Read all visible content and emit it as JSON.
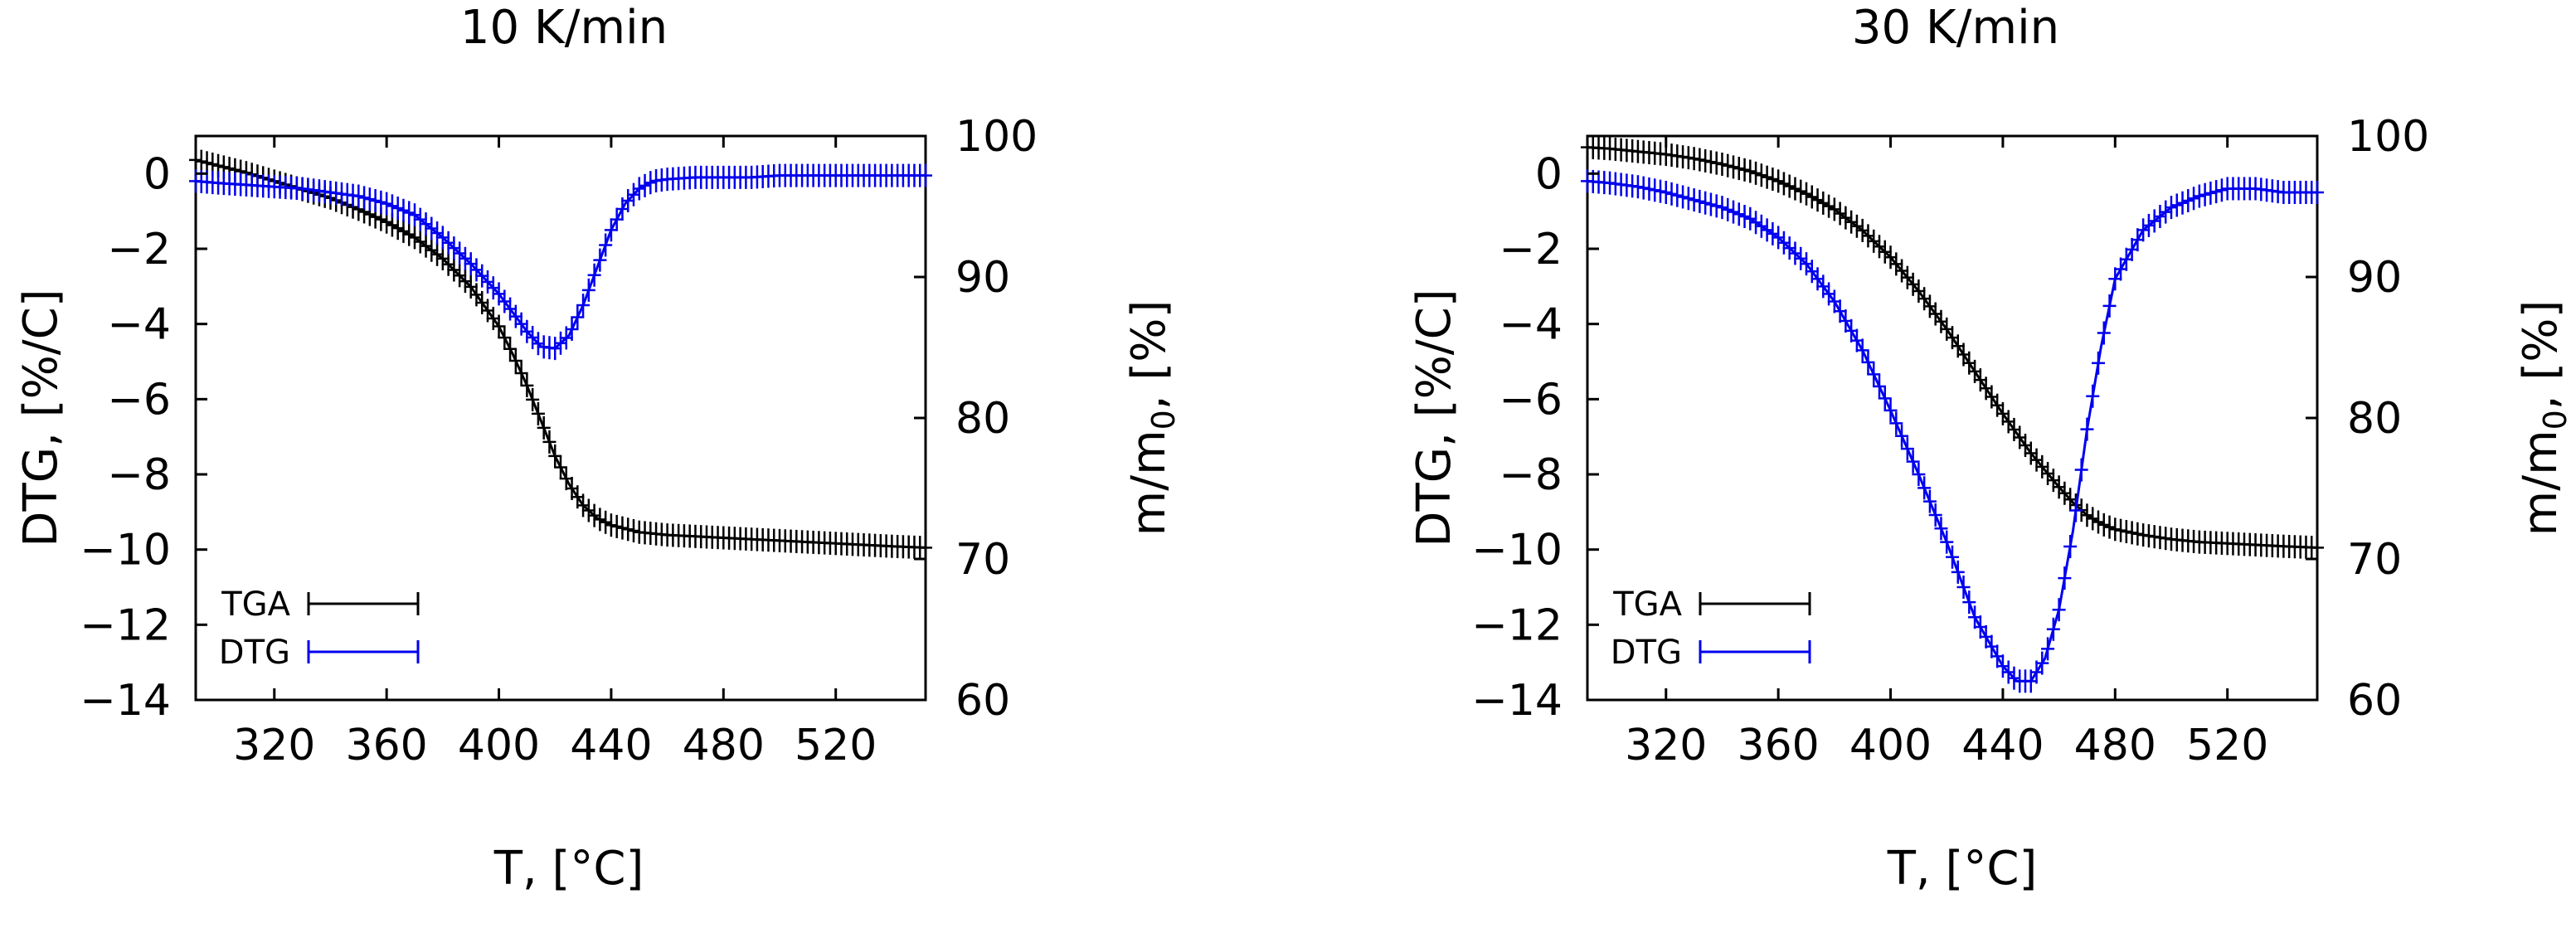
{
  "chart_data": [
    {
      "type": "line",
      "title": "10 K/min",
      "xlabel": "T, [°C]",
      "ylabel_left": "DTG, [%/C]",
      "ylabel_right": "m/m0, [%]",
      "xlim": [
        292,
        552
      ],
      "ylim_left": [
        -14,
        1
      ],
      "ylim_right": [
        60,
        100
      ],
      "xticks": [
        320,
        360,
        400,
        440,
        480,
        520
      ],
      "yticks_left": [
        0,
        -2,
        -4,
        -6,
        -8,
        -10,
        -12,
        -14
      ],
      "yticks_right": [
        100,
        90,
        80,
        70,
        60
      ],
      "legend_position": "bottom-left",
      "series": [
        {
          "name": "TGA",
          "axis": "right",
          "color": "#000000",
          "x": [
            292,
            300,
            310,
            320,
            330,
            340,
            350,
            360,
            370,
            380,
            390,
            400,
            405,
            410,
            415,
            420,
            425,
            430,
            435,
            440,
            450,
            460,
            470,
            480,
            490,
            500,
            510,
            520,
            530,
            540,
            552
          ],
          "y": [
            98.3,
            97.9,
            97.4,
            96.8,
            96.2,
            95.6,
            94.8,
            93.9,
            92.8,
            91.3,
            89.3,
            86.5,
            84.5,
            82.3,
            79.8,
            77.3,
            75.3,
            73.8,
            72.9,
            72.4,
            71.9,
            71.7,
            71.6,
            71.5,
            71.4,
            71.3,
            71.2,
            71.1,
            71.0,
            70.9,
            70.8
          ]
        },
        {
          "name": "DTG",
          "axis": "left",
          "color": "#0000ee",
          "x": [
            292,
            300,
            310,
            320,
            330,
            340,
            350,
            360,
            370,
            380,
            390,
            400,
            405,
            410,
            415,
            420,
            425,
            430,
            435,
            440,
            445,
            450,
            455,
            460,
            470,
            480,
            490,
            500,
            520,
            552
          ],
          "y": [
            -0.2,
            -0.25,
            -0.3,
            -0.35,
            -0.4,
            -0.5,
            -0.6,
            -0.8,
            -1.1,
            -1.7,
            -2.4,
            -3.2,
            -3.7,
            -4.2,
            -4.6,
            -4.65,
            -4.3,
            -3.5,
            -2.5,
            -1.5,
            -0.8,
            -0.4,
            -0.2,
            -0.15,
            -0.1,
            -0.1,
            -0.1,
            -0.05,
            -0.05,
            -0.05
          ]
        }
      ]
    },
    {
      "type": "line",
      "title": "30 K/min",
      "xlabel": "T, [°C]",
      "ylabel_left": "DTG, [%/C]",
      "ylabel_right": "m/m0, [%]",
      "xlim": [
        292,
        552
      ],
      "ylim_left": [
        -14,
        1
      ],
      "ylim_right": [
        60,
        100
      ],
      "xticks": [
        320,
        360,
        400,
        440,
        480,
        520
      ],
      "yticks_left": [
        0,
        -2,
        -4,
        -6,
        -8,
        -10,
        -12,
        -14
      ],
      "yticks_right": [
        100,
        90,
        80,
        70,
        60
      ],
      "legend_position": "bottom-left",
      "series": [
        {
          "name": "TGA",
          "axis": "right",
          "color": "#000000",
          "x": [
            292,
            300,
            310,
            320,
            330,
            340,
            350,
            360,
            370,
            380,
            390,
            400,
            410,
            420,
            430,
            440,
            450,
            455,
            460,
            465,
            470,
            475,
            480,
            490,
            500,
            510,
            520,
            530,
            540,
            552
          ],
          "y": [
            99.2,
            99.1,
            98.9,
            98.7,
            98.4,
            98.0,
            97.5,
            96.8,
            95.9,
            94.8,
            93.3,
            91.4,
            89.0,
            86.3,
            83.3,
            80.3,
            77.5,
            76.3,
            75.1,
            74.0,
            73.1,
            72.5,
            72.1,
            71.7,
            71.4,
            71.2,
            71.1,
            71.0,
            70.9,
            70.8
          ]
        },
        {
          "name": "DTG",
          "axis": "left",
          "color": "#0000ee",
          "x": [
            292,
            300,
            310,
            320,
            330,
            340,
            350,
            360,
            370,
            380,
            390,
            400,
            410,
            420,
            430,
            440,
            445,
            450,
            455,
            460,
            465,
            470,
            475,
            480,
            490,
            500,
            510,
            520,
            530,
            540,
            552
          ],
          "y": [
            -0.2,
            -0.25,
            -0.35,
            -0.5,
            -0.7,
            -0.9,
            -1.2,
            -1.7,
            -2.4,
            -3.4,
            -4.7,
            -6.3,
            -8.0,
            -9.8,
            -11.8,
            -13.1,
            -13.5,
            -13.5,
            -12.9,
            -11.6,
            -9.5,
            -6.8,
            -4.6,
            -2.8,
            -1.5,
            -0.9,
            -0.6,
            -0.4,
            -0.4,
            -0.5,
            -0.5
          ]
        }
      ]
    }
  ]
}
